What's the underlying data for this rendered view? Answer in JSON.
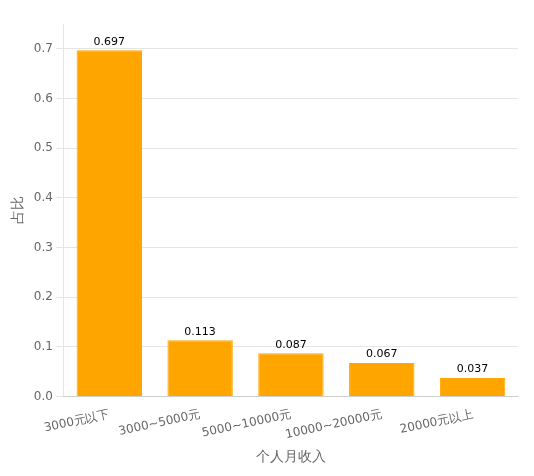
{
  "chart_data": {
    "type": "bar",
    "categories": [
      "3000元以下",
      "3000~5000元",
      "5000~10000元",
      "10000~20000元",
      "20000元以上"
    ],
    "values": [
      0.697,
      0.113,
      0.087,
      0.067,
      0.037
    ],
    "color": "#FFA500",
    "xlabel": "个人月收入",
    "ylabel": "占比",
    "ylim": [
      0.0,
      0.75
    ],
    "yticks": [
      {
        "value": 0.0,
        "label": "0.0"
      },
      0.1,
      0.2,
      0.3,
      0.4,
      0.5,
      0.6,
      0.7
    ],
    "grid": true,
    "data_labels": true
  }
}
